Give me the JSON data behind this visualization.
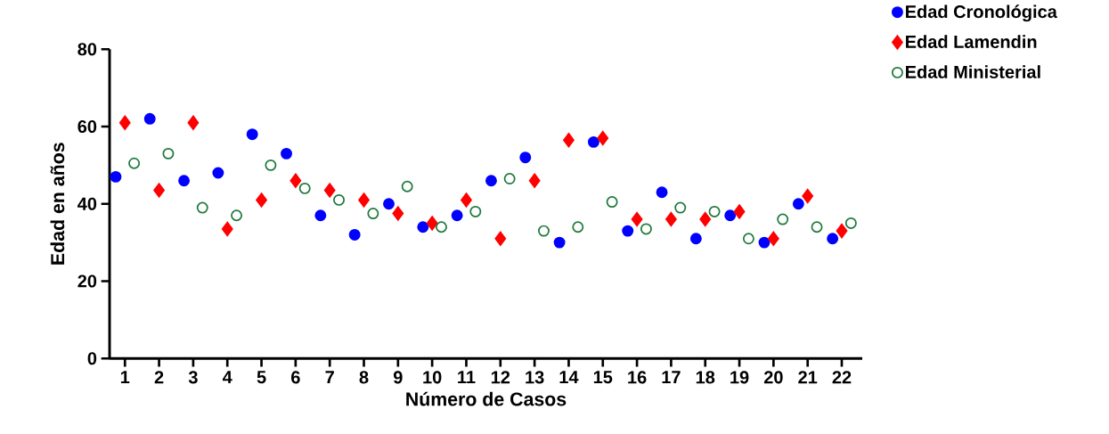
{
  "chart_data": {
    "type": "scatter",
    "xlabel": "Número de Casos",
    "ylabel": "Edad en años",
    "categories": [
      "1",
      "2",
      "3",
      "4",
      "5",
      "6",
      "7",
      "8",
      "9",
      "10",
      "11",
      "12",
      "13",
      "14",
      "15",
      "16",
      "17",
      "18",
      "19",
      "20",
      "21",
      "22"
    ],
    "ylim": [
      0,
      80
    ],
    "yticks": [
      0,
      20,
      40,
      60,
      80
    ],
    "grid": false,
    "legend": "top right",
    "series": [
      {
        "name": "Edad Cronológica",
        "color": "#0000ff",
        "marker": "circle",
        "values": [
          47,
          62,
          46,
          48,
          58,
          53,
          37,
          32,
          40,
          34,
          37,
          46,
          52,
          30,
          56,
          33,
          43,
          31,
          37,
          30,
          40,
          31
        ]
      },
      {
        "name": "Edad Lamendin",
        "color": "#ff0000",
        "marker": "diamond",
        "values": [
          61,
          43.5,
          61,
          33.5,
          41,
          46,
          43.5,
          41,
          37.5,
          35,
          41,
          31,
          46,
          56.5,
          57,
          36,
          36,
          36,
          38,
          31,
          42,
          33
        ]
      },
      {
        "name": "Edad Ministerial",
        "color": "#1e7a3c",
        "marker": "circle",
        "values": [
          50.5,
          53,
          39,
          37,
          50,
          44,
          41,
          37.5,
          44.5,
          34,
          38,
          46.5,
          33,
          34,
          40.5,
          33.5,
          39,
          38,
          31,
          36,
          34,
          35
        ]
      }
    ]
  }
}
